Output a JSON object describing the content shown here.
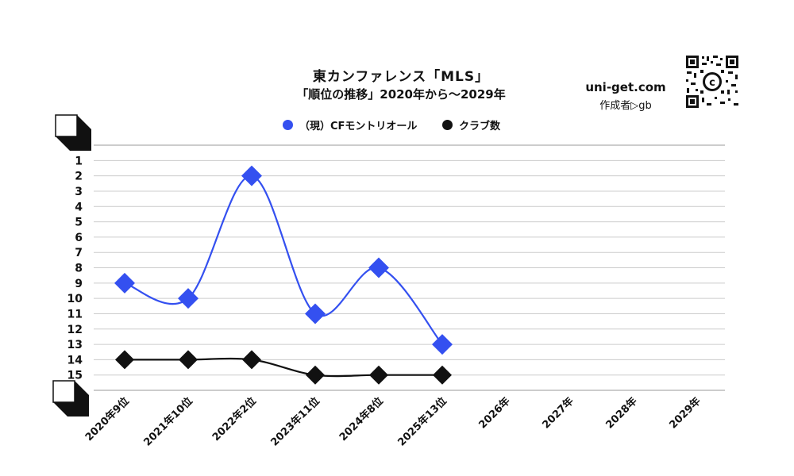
{
  "header": {
    "title": "東カンファレンス「MLS」",
    "subtitle": "「順位の推移」2020年から～2029年",
    "site": "uni-get.com",
    "author": "作成者▷gb"
  },
  "legend": {
    "series1_label": "（現）CFモントリオール",
    "series2_label": "クラブ数"
  },
  "colors": {
    "series1": "#3450f0",
    "series2": "#111111",
    "grid": "#cccccc"
  },
  "chart_data": {
    "type": "line",
    "title": "東カンファレンス「MLS」",
    "subtitle": "「順位の推移」2020年から～2029年",
    "categories": [
      "2020年9位",
      "2021年10位",
      "2022年2位",
      "2023年11位",
      "2024年8位",
      "2025年13位",
      "2026年",
      "2027年",
      "2028年",
      "2029年"
    ],
    "y_ticks": [
      "1",
      "2",
      "3",
      "4",
      "5",
      "6",
      "7",
      "8",
      "9",
      "10",
      "11",
      "12",
      "13",
      "14",
      "15"
    ],
    "ylim": [
      0,
      16
    ],
    "y_inverted": true,
    "grid": true,
    "legend_position": "top",
    "series": [
      {
        "name": "（現）CFモントリオール",
        "values": [
          9,
          10,
          2,
          11,
          8,
          13,
          null,
          null,
          null,
          null
        ]
      },
      {
        "name": "クラブ数",
        "values": [
          14,
          14,
          14,
          15,
          15,
          15,
          null,
          null,
          null,
          null
        ]
      }
    ]
  }
}
